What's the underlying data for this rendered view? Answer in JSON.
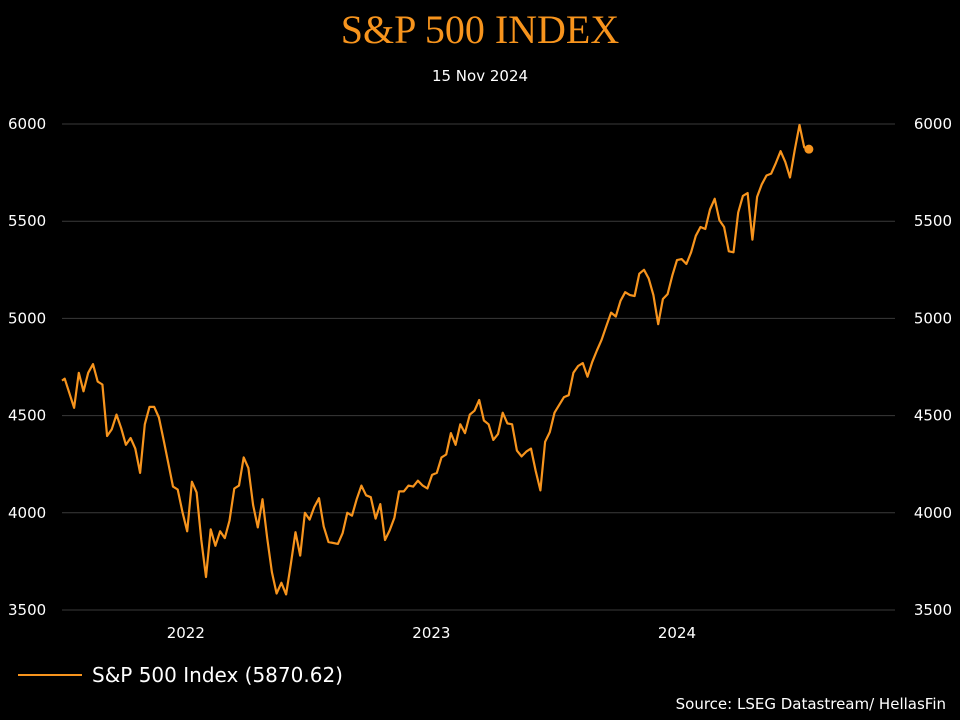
{
  "chart_data": {
    "type": "line",
    "title": "S&P 500 INDEX",
    "subtitle": "15 Nov 2024",
    "xlabel": "",
    "ylabel": "",
    "ylim": [
      3500,
      6000
    ],
    "yticks": [
      3500,
      4000,
      4500,
      5000,
      5500,
      6000
    ],
    "y_axis": "both-left-and-right",
    "grid": "horizontal",
    "xlim": [
      "2021-07-01",
      "2024-11-20"
    ],
    "xticks": [
      {
        "label": "2022",
        "date": "2022-01-01"
      },
      {
        "label": "2023",
        "date": "2023-01-01"
      },
      {
        "label": "2024",
        "date": "2024-01-01"
      }
    ],
    "legend_position": "bottom-left",
    "series": [
      {
        "name": "S&P 500 Index (5870.62)",
        "color": "#f7941d",
        "last_point_marker": true,
        "points": [
          [
            "2021-07-01",
            4680
          ],
          [
            "2021-07-05",
            4690
          ],
          [
            "2021-07-12",
            4615
          ],
          [
            "2021-07-19",
            4540
          ],
          [
            "2021-07-26",
            4720
          ],
          [
            "2021-08-02",
            4625
          ],
          [
            "2021-08-09",
            4720
          ],
          [
            "2021-08-16",
            4765
          ],
          [
            "2021-08-23",
            4675
          ],
          [
            "2021-08-30",
            4660
          ],
          [
            "2021-09-06",
            4395
          ],
          [
            "2021-09-13",
            4430
          ],
          [
            "2021-09-20",
            4505
          ],
          [
            "2021-09-27",
            4435
          ],
          [
            "2021-10-04",
            4350
          ],
          [
            "2021-10-11",
            4385
          ],
          [
            "2021-10-18",
            4330
          ],
          [
            "2021-10-25",
            4205
          ],
          [
            "2021-11-01",
            4455
          ],
          [
            "2021-11-08",
            4545
          ],
          [
            "2021-11-15",
            4545
          ],
          [
            "2021-11-22",
            4490
          ],
          [
            "2021-11-29",
            4375
          ],
          [
            "2021-12-06",
            4255
          ],
          [
            "2021-12-13",
            4135
          ],
          [
            "2021-12-20",
            4120
          ],
          [
            "2021-12-27",
            4005
          ],
          [
            "2022-01-03",
            3905
          ],
          [
            "2022-01-10",
            4160
          ],
          [
            "2022-01-17",
            4105
          ],
          [
            "2022-01-24",
            3860
          ],
          [
            "2022-01-31",
            3670
          ],
          [
            "2022-02-07",
            3915
          ],
          [
            "2022-02-14",
            3830
          ],
          [
            "2022-02-21",
            3905
          ],
          [
            "2022-02-28",
            3870
          ],
          [
            "2022-03-07",
            3960
          ],
          [
            "2022-03-14",
            4125
          ],
          [
            "2022-03-21",
            4140
          ],
          [
            "2022-03-28",
            4285
          ],
          [
            "2022-04-04",
            4230
          ],
          [
            "2022-04-11",
            4040
          ],
          [
            "2022-04-18",
            3925
          ],
          [
            "2022-04-25",
            4070
          ],
          [
            "2022-05-02",
            3870
          ],
          [
            "2022-05-09",
            3695
          ],
          [
            "2022-05-16",
            3585
          ],
          [
            "2022-05-23",
            3640
          ],
          [
            "2022-05-30",
            3580
          ],
          [
            "2022-06-06",
            3735
          ],
          [
            "2022-06-13",
            3900
          ],
          [
            "2022-06-20",
            3780
          ],
          [
            "2022-06-27",
            4000
          ],
          [
            "2022-07-04",
            3965
          ],
          [
            "2022-07-11",
            4030
          ],
          [
            "2022-07-18",
            4075
          ],
          [
            "2022-07-25",
            3930
          ],
          [
            "2022-08-01",
            3850
          ],
          [
            "2022-08-15",
            3840
          ],
          [
            "2022-08-22",
            3895
          ],
          [
            "2022-08-29",
            4000
          ],
          [
            "2022-09-05",
            3985
          ],
          [
            "2022-09-12",
            4070
          ],
          [
            "2022-09-19",
            4140
          ],
          [
            "2022-09-26",
            4090
          ],
          [
            "2022-10-03",
            4080
          ],
          [
            "2022-10-10",
            3970
          ],
          [
            "2022-10-17",
            4045
          ],
          [
            "2022-10-24",
            3860
          ],
          [
            "2022-10-31",
            3910
          ],
          [
            "2022-11-07",
            3975
          ],
          [
            "2022-11-14",
            4110
          ],
          [
            "2022-11-21",
            4110
          ],
          [
            "2022-11-28",
            4140
          ],
          [
            "2022-12-05",
            4135
          ],
          [
            "2022-12-12",
            4165
          ],
          [
            "2022-12-19",
            4140
          ],
          [
            "2022-12-26",
            4125
          ],
          [
            "2023-01-02",
            4195
          ],
          [
            "2023-01-09",
            4205
          ],
          [
            "2023-01-16",
            4285
          ],
          [
            "2023-01-23",
            4300
          ],
          [
            "2023-01-30",
            4410
          ],
          [
            "2023-02-06",
            4350
          ],
          [
            "2023-02-13",
            4455
          ],
          [
            "2023-02-20",
            4410
          ],
          [
            "2023-02-27",
            4505
          ],
          [
            "2023-03-06",
            4525
          ],
          [
            "2023-03-13",
            4580
          ],
          [
            "2023-03-20",
            4475
          ],
          [
            "2023-03-27",
            4455
          ],
          [
            "2023-04-03",
            4375
          ],
          [
            "2023-04-10",
            4405
          ],
          [
            "2023-04-17",
            4515
          ],
          [
            "2023-04-24",
            4460
          ],
          [
            "2023-05-01",
            4455
          ],
          [
            "2023-05-08",
            4320
          ],
          [
            "2023-05-15",
            4290
          ],
          [
            "2023-05-22",
            4315
          ],
          [
            "2023-05-29",
            4330
          ],
          [
            "2023-06-05",
            4215
          ],
          [
            "2023-06-12",
            4115
          ],
          [
            "2023-06-19",
            4365
          ],
          [
            "2023-06-26",
            4415
          ],
          [
            "2023-07-03",
            4515
          ],
          [
            "2023-07-10",
            4555
          ],
          [
            "2023-07-17",
            4595
          ],
          [
            "2023-07-24",
            4605
          ],
          [
            "2023-07-31",
            4720
          ],
          [
            "2023-08-07",
            4755
          ],
          [
            "2023-08-14",
            4770
          ],
          [
            "2023-08-21",
            4700
          ],
          [
            "2023-08-28",
            4775
          ],
          [
            "2023-09-04",
            4835
          ],
          [
            "2023-09-11",
            4890
          ],
          [
            "2023-09-18",
            4960
          ],
          [
            "2023-09-25",
            5030
          ],
          [
            "2023-10-02",
            5010
          ],
          [
            "2023-10-09",
            5090
          ],
          [
            "2023-10-16",
            5135
          ],
          [
            "2023-10-23",
            5120
          ],
          [
            "2023-10-30",
            5115
          ],
          [
            "2023-11-06",
            5230
          ],
          [
            "2023-11-13",
            5250
          ],
          [
            "2023-11-20",
            5205
          ],
          [
            "2023-11-27",
            5120
          ],
          [
            "2023-12-04",
            4970
          ],
          [
            "2023-12-11",
            5100
          ],
          [
            "2023-12-18",
            5125
          ],
          [
            "2023-12-25",
            5220
          ],
          [
            "2024-01-01",
            5300
          ],
          [
            "2024-01-08",
            5305
          ],
          [
            "2024-01-15",
            5280
          ],
          [
            "2024-01-22",
            5340
          ],
          [
            "2024-01-29",
            5425
          ],
          [
            "2024-02-05",
            5470
          ],
          [
            "2024-02-12",
            5460
          ],
          [
            "2024-02-19",
            5560
          ],
          [
            "2024-02-26",
            5615
          ],
          [
            "2024-03-04",
            5505
          ],
          [
            "2024-03-11",
            5470
          ],
          [
            "2024-03-18",
            5345
          ],
          [
            "2024-03-25",
            5340
          ],
          [
            "2024-04-01",
            5545
          ],
          [
            "2024-04-08",
            5630
          ],
          [
            "2024-04-15",
            5645
          ],
          [
            "2024-04-22",
            5405
          ],
          [
            "2024-04-29",
            5625
          ],
          [
            "2024-05-06",
            5690
          ],
          [
            "2024-05-13",
            5735
          ],
          [
            "2024-05-20",
            5745
          ],
          [
            "2024-05-27",
            5800
          ],
          [
            "2024-06-03",
            5860
          ],
          [
            "2024-06-10",
            5805
          ],
          [
            "2024-06-17",
            5725
          ],
          [
            "2024-06-24",
            5865
          ],
          [
            "2024-07-01",
            5995
          ],
          [
            "2024-07-08",
            5880
          ],
          [
            "2024-07-15",
            5870.62
          ]
        ]
      }
    ],
    "source": "Source: LSEG Datastream/ HellasFin"
  }
}
